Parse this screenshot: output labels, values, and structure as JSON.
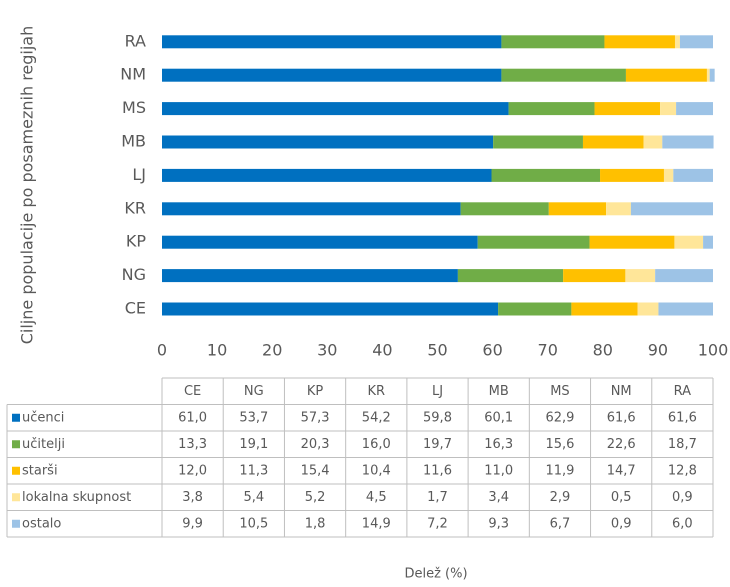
{
  "chart_data": {
    "type": "stacked_barh",
    "xlabel": "Delež (%)",
    "ylabel": "Ciljne populacije po posameznih regijah",
    "categories": [
      "CE",
      "NG",
      "KP",
      "KR",
      "LJ",
      "MB",
      "MS",
      "NM",
      "RA"
    ],
    "series": [
      {
        "name": "učenci",
        "color": "#0070c0",
        "values": [
          61.0,
          53.7,
          57.3,
          54.2,
          59.8,
          60.1,
          62.9,
          61.6,
          61.6
        ],
        "value_labels": [
          "61,0",
          "53,7",
          "57,3",
          "54,2",
          "59,8",
          "60,1",
          "62,9",
          "61,6",
          "61,6"
        ]
      },
      {
        "name": "učitelji",
        "color": "#70ad47",
        "values": [
          13.3,
          19.1,
          20.3,
          16.0,
          19.7,
          16.3,
          15.6,
          22.6,
          18.7
        ],
        "value_labels": [
          "13,3",
          "19,1",
          "20,3",
          "16,0",
          "19,7",
          "16,3",
          "15,6",
          "22,6",
          "18,7"
        ]
      },
      {
        "name": "starši",
        "color": "#ffc000",
        "values": [
          12.0,
          11.3,
          15.4,
          10.4,
          11.6,
          11.0,
          11.9,
          14.7,
          12.8
        ],
        "value_labels": [
          "12,0",
          "11,3",
          "15,4",
          "10,4",
          "11,6",
          "11,0",
          "11,9",
          "14,7",
          "12,8"
        ]
      },
      {
        "name": "lokalna skupnost",
        "color": "#ffe699",
        "values": [
          3.8,
          5.4,
          5.2,
          4.5,
          1.7,
          3.4,
          2.9,
          0.5,
          0.9
        ],
        "value_labels": [
          "3,8",
          "5,4",
          "5,2",
          "4,5",
          "1,7",
          "3,4",
          "2,9",
          "0,5",
          "0,9"
        ]
      },
      {
        "name": "ostalo",
        "color": "#9dc3e6",
        "values": [
          9.9,
          10.5,
          1.8,
          14.9,
          7.2,
          9.3,
          6.7,
          0.9,
          6.0
        ],
        "value_labels": [
          "9,9",
          "10,5",
          "1,8",
          "14,9",
          "7,2",
          "9,3",
          "6,7",
          "0,9",
          "6,0"
        ]
      }
    ],
    "xlim": [
      0,
      100
    ],
    "xticks": [
      0,
      10,
      20,
      30,
      40,
      50,
      60,
      70,
      80,
      90,
      100
    ]
  }
}
